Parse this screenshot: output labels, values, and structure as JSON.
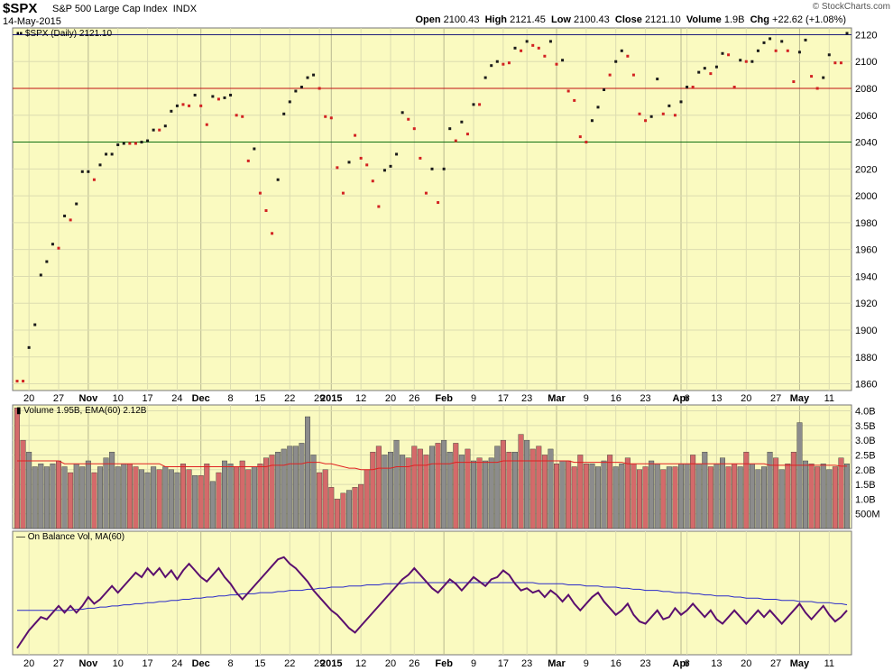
{
  "header": {
    "ticker": "$SPX",
    "name": "S&P 500 Large Cap Index",
    "exchange": "INDX",
    "date": "14-May-2015",
    "open_label": "Open",
    "open": "2100.43",
    "high_label": "High",
    "high": "2121.45",
    "low_label": "Low",
    "low": "2100.43",
    "close_label": "Close",
    "close": "2121.10",
    "volume_label": "Volume",
    "volume": "1.9B",
    "chg_label": "Chg",
    "chg": "+22.62 (+1.08%)",
    "brand": "© StockCharts.com"
  },
  "colors": {
    "up": "#1a1a1a",
    "down": "#d22222",
    "panel_bg": "#fafac0",
    "obv": "#5a0f6e",
    "ma": "#2a2ac8",
    "ema": "#e02020",
    "vol_up": "#8c8c8c",
    "vol_down": "#d46a6a"
  },
  "chart_data": [
    {
      "type": "scatter",
      "title": "$SPX (Daily) 2121.10",
      "legend_label": "$SPX (Daily) 2121.10",
      "ylim": [
        1855,
        2125
      ],
      "yticks": [
        1860,
        1880,
        1900,
        1920,
        1940,
        1960,
        1980,
        2000,
        2020,
        2040,
        2060,
        2080,
        2100,
        2120
      ],
      "grid": true,
      "hlines": [
        {
          "value": 2120,
          "color": "#1c1c7a"
        },
        {
          "value": 2080,
          "color": "#c01010"
        },
        {
          "value": 2040,
          "color": "#107010"
        }
      ],
      "close": [
        1862,
        1862,
        1887,
        1904,
        1941,
        1951,
        1964,
        1961,
        1985,
        1982,
        1994,
        2018,
        2018,
        2012,
        2023,
        2031,
        2031,
        2038,
        2039,
        2039,
        2039,
        2040,
        2041,
        2049,
        2049,
        2052,
        2063,
        2067,
        2068,
        2067,
        2075,
        2067,
        2053,
        2074,
        2072,
        2073,
        2075,
        2060,
        2059,
        2026,
        2035,
        2002,
        1989,
        1972,
        2012,
        2061,
        2070,
        2078,
        2081,
        2088,
        2090,
        2080,
        2059,
        2058,
        2021,
        2002,
        2025,
        2045,
        2028,
        2023,
        2011,
        1992,
        2019,
        2022,
        2031,
        2062,
        2057,
        2050,
        2028,
        2002,
        2020,
        1995,
        2020,
        2050,
        2041,
        2055,
        2046,
        2068,
        2068,
        2088,
        2097,
        2100,
        2098,
        2099,
        2110,
        2108,
        2115,
        2112,
        2110,
        2104,
        2115,
        2098,
        2101,
        2078,
        2071,
        2044,
        2040,
        2056,
        2066,
        2079,
        2090,
        2100,
        2108,
        2104,
        2090,
        2061,
        2056,
        2059,
        2087,
        2061,
        2067,
        2060,
        2070,
        2081,
        2081,
        2092,
        2095,
        2091,
        2096,
        2106,
        2105,
        2081,
        2101,
        2100,
        2100,
        2108,
        2114,
        2117,
        2108,
        2115,
        2108,
        2085,
        2107,
        2116,
        2089,
        2080,
        2088,
        2105,
        2099,
        2099,
        2121
      ],
      "up": [
        0,
        0,
        1,
        1,
        1,
        1,
        1,
        0,
        1,
        0,
        1,
        1,
        1,
        0,
        1,
        1,
        1,
        1,
        1,
        0,
        0,
        1,
        1,
        1,
        0,
        1,
        1,
        1,
        0,
        0,
        1,
        0,
        0,
        1,
        0,
        1,
        1,
        0,
        0,
        0,
        1,
        0,
        0,
        0,
        1,
        1,
        1,
        1,
        1,
        1,
        1,
        0,
        0,
        0,
        0,
        0,
        1,
        0,
        0,
        0,
        0,
        0,
        1,
        1,
        1,
        1,
        0,
        0,
        0,
        0,
        1,
        0,
        1,
        1,
        0,
        1,
        0,
        1,
        0,
        1,
        1,
        1,
        0,
        0,
        1,
        0,
        1,
        0,
        0,
        0,
        1,
        0,
        1,
        0,
        0,
        0,
        0,
        1,
        1,
        1,
        0,
        1,
        1,
        0,
        0,
        0,
        0,
        1,
        1,
        0,
        1,
        0,
        1,
        1,
        0,
        1,
        1,
        0,
        1,
        1,
        0,
        0,
        1,
        0,
        1,
        1,
        1,
        1,
        0,
        1,
        0,
        0,
        1,
        1,
        0,
        0,
        1,
        1,
        0,
        0,
        1
      ]
    },
    {
      "type": "bar",
      "title": "Volume 1.95B, EMA(60) 2.12B",
      "legend_label": "Volume 1.95B, EMA(60) 2.12B",
      "yticks": [
        {
          "v": 0.5,
          "label": "500M"
        },
        {
          "v": 1.0,
          "label": "1.0B"
        },
        {
          "v": 1.5,
          "label": "1.5B"
        },
        {
          "v": 2.0,
          "label": "2.0B"
        },
        {
          "v": 2.5,
          "label": "2.5B"
        },
        {
          "v": 3.0,
          "label": "3.0B"
        },
        {
          "v": 3.5,
          "label": "3.5B"
        },
        {
          "v": 4.0,
          "label": "4.0B"
        }
      ],
      "ylim": [
        0,
        4.2
      ],
      "values": [
        4.1,
        3.0,
        2.6,
        2.1,
        2.2,
        2.1,
        2.2,
        2.3,
        2.1,
        1.9,
        2.2,
        2.1,
        2.3,
        1.9,
        2.1,
        2.4,
        2.6,
        2.1,
        2.2,
        2.2,
        2.1,
        2.0,
        1.9,
        2.1,
        2.0,
        2.1,
        2.0,
        1.9,
        2.2,
        2.0,
        1.8,
        1.8,
        2.2,
        1.6,
        1.9,
        2.3,
        2.2,
        2.1,
        2.3,
        2.0,
        2.1,
        2.2,
        2.4,
        2.5,
        2.6,
        2.7,
        2.8,
        2.8,
        2.9,
        3.8,
        2.5,
        1.9,
        2.0,
        1.4,
        1.0,
        1.2,
        1.3,
        1.4,
        1.5,
        2.0,
        2.6,
        2.8,
        2.5,
        2.6,
        3.0,
        2.5,
        2.4,
        2.8,
        2.7,
        2.5,
        2.8,
        2.9,
        3.0,
        2.6,
        2.9,
        2.5,
        2.7,
        2.3,
        2.4,
        2.3,
        2.4,
        2.8,
        3.0,
        2.6,
        2.6,
        3.2,
        3.0,
        2.7,
        2.8,
        2.5,
        2.7,
        2.2,
        2.3,
        2.3,
        2.1,
        2.5,
        2.2,
        2.2,
        2.1,
        2.3,
        2.5,
        2.1,
        2.2,
        2.4,
        2.2,
        2.0,
        2.1,
        2.3,
        2.2,
        2.0,
        2.1,
        2.1,
        2.2,
        2.2,
        2.5,
        2.2,
        2.6,
        2.1,
        2.2,
        2.4,
        2.1,
        2.2,
        2.1,
        2.6,
        2.2,
        2.0,
        2.1,
        2.6,
        2.4,
        2.0,
        2.2,
        2.6,
        3.6,
        2.3,
        2.2,
        2.1,
        2.2,
        2.0,
        2.1,
        2.4,
        2.2
      ],
      "ema": [
        2.3,
        2.3,
        2.3,
        2.3,
        2.3,
        2.3,
        2.3,
        2.3,
        2.2,
        2.2,
        2.2,
        2.2,
        2.2,
        2.2,
        2.2,
        2.2,
        2.2,
        2.2,
        2.2,
        2.2,
        2.2,
        2.2,
        2.2,
        2.2,
        2.2,
        2.1,
        2.1,
        2.1,
        2.1,
        2.1,
        2.1,
        2.1,
        2.1,
        2.1,
        2.1,
        2.1,
        2.1,
        2.1,
        2.1,
        2.1,
        2.1,
        2.1,
        2.1,
        2.15,
        2.15,
        2.15,
        2.2,
        2.2,
        2.2,
        2.25,
        2.25,
        2.25,
        2.2,
        2.2,
        2.15,
        2.1,
        2.05,
        2.05,
        2.0,
        2.0,
        2.0,
        2.05,
        2.05,
        2.05,
        2.1,
        2.1,
        2.1,
        2.15,
        2.15,
        2.15,
        2.2,
        2.2,
        2.2,
        2.2,
        2.25,
        2.25,
        2.25,
        2.25,
        2.25,
        2.25,
        2.25,
        2.25,
        2.3,
        2.3,
        2.3,
        2.3,
        2.3,
        2.3,
        2.3,
        2.3,
        2.3,
        2.3,
        2.3,
        2.3,
        2.25,
        2.25,
        2.25,
        2.25,
        2.25,
        2.25,
        2.25,
        2.25,
        2.25,
        2.2,
        2.2,
        2.2,
        2.2,
        2.2,
        2.2,
        2.2,
        2.2,
        2.2,
        2.2,
        2.2,
        2.2,
        2.2,
        2.2,
        2.2,
        2.2,
        2.2,
        2.2,
        2.2,
        2.2,
        2.2,
        2.2,
        2.2,
        2.2,
        2.15,
        2.15,
        2.15,
        2.15,
        2.15,
        2.15,
        2.15,
        2.15,
        2.15,
        2.15,
        2.15,
        2.15,
        2.12,
        2.12
      ]
    },
    {
      "type": "line",
      "title": "On Balance Vol, MA(60)",
      "legend_label": "On Balance Vol, MA(60)",
      "note_ylim": [
        0,
        100
      ],
      "obv": [
        6,
        14,
        22,
        28,
        34,
        32,
        38,
        44,
        38,
        44,
        38,
        44,
        52,
        46,
        50,
        56,
        62,
        56,
        62,
        68,
        74,
        70,
        78,
        72,
        78,
        70,
        76,
        68,
        76,
        82,
        76,
        70,
        66,
        72,
        78,
        70,
        64,
        56,
        50,
        56,
        62,
        68,
        74,
        80,
        86,
        88,
        82,
        78,
        72,
        66,
        58,
        52,
        46,
        40,
        36,
        30,
        24,
        20,
        26,
        32,
        38,
        44,
        50,
        56,
        62,
        68,
        72,
        78,
        72,
        66,
        60,
        56,
        62,
        68,
        64,
        58,
        64,
        70,
        66,
        62,
        68,
        70,
        76,
        72,
        64,
        58,
        60,
        56,
        58,
        52,
        58,
        54,
        48,
        54,
        46,
        40,
        46,
        52,
        56,
        48,
        42,
        36,
        40,
        46,
        36,
        30,
        28,
        34,
        40,
        32,
        34,
        42,
        36,
        40,
        46,
        40,
        34,
        40,
        32,
        28,
        34,
        40,
        34,
        28,
        34,
        40,
        34,
        40,
        34,
        28,
        34,
        40,
        46,
        38,
        32,
        38,
        44,
        36,
        30,
        34,
        40
      ],
      "ma": [
        40,
        40,
        40,
        40,
        40,
        40,
        40,
        40,
        40,
        40,
        41,
        41,
        42,
        42,
        43,
        43,
        44,
        44,
        45,
        45,
        46,
        46,
        47,
        47,
        48,
        48,
        49,
        49,
        50,
        50,
        51,
        51,
        52,
        52,
        53,
        53,
        54,
        54,
        55,
        55,
        55,
        56,
        56,
        56,
        57,
        57,
        58,
        58,
        58,
        59,
        59,
        60,
        60,
        61,
        61,
        61,
        62,
        62,
        62,
        63,
        63,
        63,
        64,
        64,
        64,
        64,
        65,
        65,
        65,
        65,
        65,
        65,
        65,
        65,
        65,
        65,
        65,
        65,
        65,
        65,
        65,
        65,
        65,
        65,
        65,
        65,
        65,
        65,
        64,
        64,
        64,
        64,
        64,
        63,
        63,
        63,
        62,
        62,
        62,
        61,
        61,
        61,
        60,
        60,
        59,
        59,
        58,
        58,
        58,
        57,
        57,
        56,
        56,
        56,
        55,
        55,
        54,
        54,
        53,
        53,
        53,
        52,
        52,
        51,
        51,
        51,
        50,
        50,
        50,
        49,
        49,
        49,
        48,
        48,
        48,
        47,
        47,
        47,
        46,
        46,
        45
      ]
    },
    {
      "type": "axis",
      "x_labels_top": [
        {
          "i": 2,
          "t": "20",
          "b": false
        },
        {
          "i": 7,
          "t": "27",
          "b": false
        },
        {
          "i": 12,
          "t": "Nov",
          "b": true
        },
        {
          "i": 17,
          "t": "10",
          "b": false
        },
        {
          "i": 22,
          "t": "17",
          "b": false
        },
        {
          "i": 27,
          "t": "24",
          "b": false
        },
        {
          "i": 31,
          "t": "Dec",
          "b": true
        },
        {
          "i": 36,
          "t": "8",
          "b": false
        },
        {
          "i": 41,
          "t": "15",
          "b": false
        },
        {
          "i": 46,
          "t": "22",
          "b": false
        },
        {
          "i": 51,
          "t": "29",
          "b": false
        },
        {
          "i": 53,
          "t": "2015",
          "b": true
        },
        {
          "i": 58,
          "t": "12",
          "b": false
        },
        {
          "i": 63,
          "t": "20",
          "b": false
        },
        {
          "i": 67,
          "t": "26",
          "b": false
        },
        {
          "i": 72,
          "t": "Feb",
          "b": true
        },
        {
          "i": 77,
          "t": "9",
          "b": false
        },
        {
          "i": 82,
          "t": "17",
          "b": false
        },
        {
          "i": 86,
          "t": "23",
          "b": false
        },
        {
          "i": 91,
          "t": "Mar",
          "b": true
        },
        {
          "i": 96,
          "t": "9",
          "b": false
        },
        {
          "i": 101,
          "t": "16",
          "b": false
        },
        {
          "i": 106,
          "t": "23",
          "b": false
        },
        {
          "i": 112,
          "t": "Apr",
          "b": true
        },
        {
          "i": 113,
          "t": "6",
          "b": false
        },
        {
          "i": 118,
          "t": "13",
          "b": false
        },
        {
          "i": 123,
          "t": "20",
          "b": false
        },
        {
          "i": 128,
          "t": "27",
          "b": false
        },
        {
          "i": 132,
          "t": "May",
          "b": true
        },
        {
          "i": 137,
          "t": "11",
          "b": false
        }
      ]
    }
  ]
}
